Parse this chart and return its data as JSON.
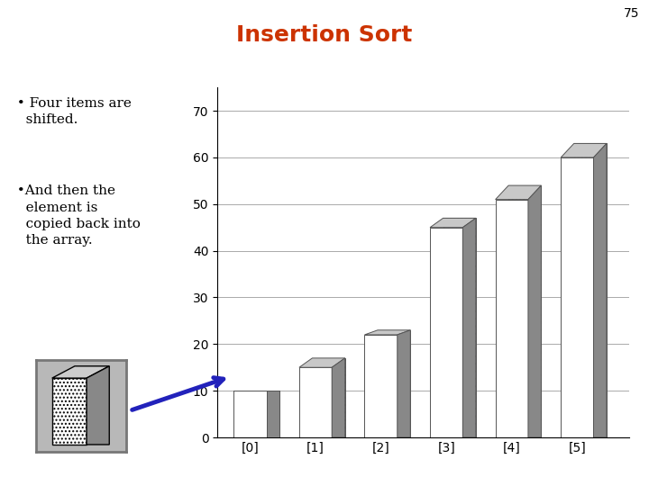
{
  "title": "Insertion Sort",
  "title_color": "#cc3300",
  "title_fontsize": 18,
  "slide_number": "75",
  "categories": [
    "[0]",
    "[1]",
    "[2]",
    "[3]",
    "[4]",
    "[5]"
  ],
  "values": [
    10,
    15,
    22,
    45,
    51,
    60
  ],
  "values_back": [
    10,
    17,
    23,
    47,
    54,
    63
  ],
  "ylim": [
    0,
    75
  ],
  "yticks": [
    0,
    10,
    20,
    30,
    40,
    50,
    60,
    70
  ],
  "bullet1": " • Four items are\n   shifted.",
  "bullet2": " •And then the\n   element is\n   copied back into\n   the array.",
  "text_color": "#000000",
  "text_fontsize": 11,
  "background_color": "#ffffff",
  "arrow_color": "#2222bb",
  "box_color": "#aaaaaa"
}
